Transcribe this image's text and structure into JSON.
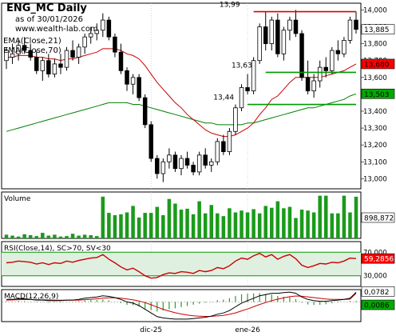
{
  "header": {
    "title": "ENG_MC Daily",
    "subtitle": "as of 30/01/2026",
    "website": "www.wealth-lab.com",
    "ema_fast_label": "EMA(Close,21)",
    "ema_slow_label": "EMA(Close,70)"
  },
  "colors": {
    "up_candle": "#ffffff",
    "down_candle": "#000000",
    "ema_fast": "#cc0000",
    "ema_slow": "#008000",
    "resistance": "#dd0000",
    "support": "#009900",
    "volume": "#1a9b1a",
    "rsi_line": "#cc0000",
    "rsi_band": "#e0f0e0",
    "macd_line": "#000000",
    "macd_signal": "#cc0000",
    "histogram": "#2a9d2a",
    "price_tag_last": "#ffffff",
    "price_tag_fast": "#ff0000",
    "price_tag_slow": "#00aa00"
  },
  "chart_data": [
    {
      "type": "candlestick",
      "panel": "price",
      "ylim": [
        12.94,
        14.04
      ],
      "yticks": [
        "14,000",
        "13,900",
        "13,800",
        "13,700",
        "13,600",
        "13,500",
        "13,400",
        "13,300",
        "13,200",
        "13,100",
        "13,000"
      ],
      "xticks": [
        "dic-25",
        "ene-26"
      ],
      "ohlc": [
        [
          13.7,
          13.78,
          13.65,
          13.76
        ],
        [
          13.72,
          13.8,
          13.68,
          13.74
        ],
        [
          13.74,
          13.82,
          13.7,
          13.79
        ],
        [
          13.79,
          13.84,
          13.74,
          13.76
        ],
        [
          13.76,
          13.8,
          13.7,
          13.72
        ],
        [
          13.72,
          13.76,
          13.62,
          13.64
        ],
        [
          13.64,
          13.72,
          13.58,
          13.7
        ],
        [
          13.7,
          13.74,
          13.6,
          13.62
        ],
        [
          13.62,
          13.71,
          13.6,
          13.68
        ],
        [
          13.68,
          13.74,
          13.62,
          13.66
        ],
        [
          13.66,
          13.78,
          13.64,
          13.76
        ],
        [
          13.76,
          13.82,
          13.7,
          13.72
        ],
        [
          13.72,
          13.8,
          13.68,
          13.78
        ],
        [
          13.78,
          13.86,
          13.74,
          13.84
        ],
        [
          13.84,
          13.9,
          13.8,
          13.86
        ],
        [
          13.86,
          13.92,
          13.82,
          13.88
        ],
        [
          13.88,
          13.98,
          13.84,
          13.94
        ],
        [
          13.94,
          13.96,
          13.82,
          13.84
        ],
        [
          13.84,
          13.86,
          13.72,
          13.75
        ],
        [
          13.75,
          13.8,
          13.62,
          13.64
        ],
        [
          13.64,
          13.66,
          13.52,
          13.56
        ],
        [
          13.56,
          13.62,
          13.5,
          13.6
        ],
        [
          13.6,
          13.62,
          13.46,
          13.48
        ],
        [
          13.48,
          13.5,
          13.3,
          13.32
        ],
        [
          13.32,
          13.34,
          13.1,
          13.12
        ],
        [
          13.12,
          13.14,
          13.0,
          13.03
        ],
        [
          13.03,
          13.12,
          12.98,
          13.1
        ],
        [
          13.1,
          13.18,
          13.06,
          13.14
        ],
        [
          13.14,
          13.16,
          13.04,
          13.06
        ],
        [
          13.06,
          13.14,
          13.02,
          13.12
        ],
        [
          13.12,
          13.16,
          13.06,
          13.08
        ],
        [
          13.08,
          13.1,
          13.02,
          13.04
        ],
        [
          13.04,
          13.16,
          13.02,
          13.14
        ],
        [
          13.14,
          13.18,
          13.06,
          13.08
        ],
        [
          13.08,
          13.12,
          13.04,
          13.1
        ],
        [
          13.1,
          13.24,
          13.08,
          13.22
        ],
        [
          13.22,
          13.26,
          13.14,
          13.16
        ],
        [
          13.16,
          13.3,
          13.14,
          13.28
        ],
        [
          13.28,
          13.44,
          13.26,
          13.42
        ],
        [
          13.42,
          13.56,
          13.4,
          13.54
        ],
        [
          13.54,
          13.62,
          13.5,
          13.52
        ],
        [
          13.52,
          13.72,
          13.5,
          13.7
        ],
        [
          13.7,
          13.92,
          13.68,
          13.9
        ],
        [
          13.9,
          13.99,
          13.76,
          13.8
        ],
        [
          13.8,
          13.96,
          13.76,
          13.94
        ],
        [
          13.94,
          13.98,
          13.72,
          13.74
        ],
        [
          13.74,
          13.9,
          13.7,
          13.88
        ],
        [
          13.88,
          13.96,
          13.82,
          13.94
        ],
        [
          13.94,
          14.0,
          13.84,
          13.86
        ],
        [
          13.86,
          13.88,
          13.58,
          13.6
        ],
        [
          13.6,
          13.7,
          13.5,
          13.52
        ],
        [
          13.52,
          13.62,
          13.48,
          13.58
        ],
        [
          13.58,
          13.7,
          13.54,
          13.66
        ],
        [
          13.66,
          13.72,
          13.6,
          13.64
        ],
        [
          13.64,
          13.78,
          13.62,
          13.76
        ],
        [
          13.76,
          13.82,
          13.7,
          13.74
        ],
        [
          13.74,
          13.84,
          13.72,
          13.82
        ],
        [
          13.82,
          13.96,
          13.8,
          13.94
        ],
        [
          13.94,
          13.99,
          13.86,
          13.885
        ]
      ],
      "ema_fast": [
        13.72,
        13.72,
        13.73,
        13.73,
        13.73,
        13.72,
        13.72,
        13.71,
        13.71,
        13.7,
        13.71,
        13.71,
        13.72,
        13.73,
        13.74,
        13.75,
        13.77,
        13.77,
        13.77,
        13.76,
        13.74,
        13.73,
        13.71,
        13.67,
        13.62,
        13.57,
        13.53,
        13.49,
        13.45,
        13.42,
        13.38,
        13.35,
        13.32,
        13.29,
        13.27,
        13.26,
        13.25,
        13.25,
        13.26,
        13.28,
        13.3,
        13.33,
        13.38,
        13.42,
        13.47,
        13.49,
        13.53,
        13.57,
        13.6,
        13.6,
        13.6,
        13.6,
        13.6,
        13.61,
        13.62,
        13.63,
        13.64,
        13.66,
        13.68
      ],
      "ema_slow": [
        13.28,
        13.29,
        13.3,
        13.31,
        13.32,
        13.33,
        13.34,
        13.35,
        13.36,
        13.37,
        13.38,
        13.39,
        13.4,
        13.41,
        13.42,
        13.43,
        13.44,
        13.45,
        13.45,
        13.45,
        13.45,
        13.44,
        13.44,
        13.43,
        13.42,
        13.41,
        13.4,
        13.39,
        13.38,
        13.37,
        13.36,
        13.35,
        13.34,
        13.33,
        13.33,
        13.32,
        13.32,
        13.32,
        13.32,
        13.32,
        13.33,
        13.33,
        13.34,
        13.35,
        13.36,
        13.37,
        13.38,
        13.39,
        13.4,
        13.41,
        13.42,
        13.42,
        13.43,
        13.44,
        13.45,
        13.46,
        13.47,
        13.49,
        13.503
      ],
      "levels": [
        {
          "label": "13,99",
          "value": 13.99,
          "role": "resistance",
          "from": 41,
          "to": 58
        },
        {
          "label": "13,63",
          "value": 13.63,
          "role": "support",
          "from": 43,
          "to": 58
        },
        {
          "label": "13,44",
          "value": 13.44,
          "role": "support",
          "from": 40,
          "to": 58
        }
      ],
      "price_tags": [
        {
          "label": "13,885",
          "value": 13.885,
          "role": "last"
        },
        {
          "label": "13,680",
          "value": 13.68,
          "role": "ema_fast"
        },
        {
          "label": "13,503",
          "value": 13.503,
          "role": "ema_slow"
        }
      ]
    },
    {
      "type": "bar",
      "panel": "volume",
      "title": "Volume",
      "ylim": [
        0,
        1000000
      ],
      "values": [
        80000,
        60000,
        40000,
        90000,
        70000,
        50000,
        120000,
        60000,
        80000,
        40000,
        50000,
        100000,
        60000,
        80000,
        70000,
        50000,
        900000,
        550000,
        500000,
        520000,
        560000,
        700000,
        450000,
        550000,
        550000,
        680000,
        500000,
        850000,
        750000,
        620000,
        640000,
        520000,
        800000,
        540000,
        720000,
        540000,
        480000,
        650000,
        560000,
        600000,
        560000,
        630000,
        540000,
        700000,
        660000,
        800000,
        650000,
        680000,
        440000,
        620000,
        600000,
        560000,
        920000,
        920000,
        540000,
        540000,
        920000,
        560000,
        898872
      ],
      "price_tag": "898,872"
    },
    {
      "type": "line",
      "panel": "rsi",
      "title": "RSI(Close,14), SC>70, SV<30",
      "ylim": [
        0,
        100
      ],
      "yticks": [
        "70,000",
        "30,000"
      ],
      "band": [
        30,
        70
      ],
      "values": [
        52,
        53,
        55,
        54,
        53,
        50,
        52,
        49,
        52,
        51,
        55,
        53,
        56,
        58,
        60,
        61,
        66,
        58,
        52,
        45,
        40,
        43,
        37,
        30,
        26,
        27,
        32,
        35,
        34,
        37,
        36,
        34,
        39,
        37,
        39,
        44,
        42,
        47,
        55,
        60,
        58,
        64,
        68,
        62,
        66,
        58,
        63,
        66,
        59,
        48,
        44,
        47,
        51,
        50,
        53,
        52,
        55,
        60,
        59.2856
      ],
      "price_tag": "59,2856"
    },
    {
      "type": "line",
      "panel": "macd",
      "title": "MACD(12,26,9)",
      "ylim": [
        -0.16,
        0.1
      ],
      "macd": [
        0.02,
        0.02,
        0.025,
        0.025,
        0.02,
        0.015,
        0.015,
        0.01,
        0.01,
        0.01,
        0.015,
        0.015,
        0.02,
        0.03,
        0.035,
        0.04,
        0.05,
        0.045,
        0.035,
        0.02,
        0.0,
        -0.01,
        -0.03,
        -0.06,
        -0.09,
        -0.12,
        -0.13,
        -0.135,
        -0.14,
        -0.14,
        -0.14,
        -0.135,
        -0.13,
        -0.125,
        -0.115,
        -0.1,
        -0.09,
        -0.07,
        -0.04,
        -0.01,
        0.01,
        0.03,
        0.05,
        0.06,
        0.07,
        0.07,
        0.075,
        0.08,
        0.07,
        0.04,
        0.02,
        0.01,
        0.005,
        0.005,
        0.01,
        0.015,
        0.02,
        0.03,
        0.0782
      ],
      "signal": [
        0.015,
        0.016,
        0.018,
        0.019,
        0.019,
        0.018,
        0.017,
        0.016,
        0.015,
        0.014,
        0.014,
        0.014,
        0.015,
        0.018,
        0.021,
        0.025,
        0.03,
        0.033,
        0.033,
        0.03,
        0.024,
        0.017,
        0.008,
        -0.006,
        -0.023,
        -0.042,
        -0.06,
        -0.075,
        -0.088,
        -0.098,
        -0.107,
        -0.113,
        -0.116,
        -0.118,
        -0.117,
        -0.114,
        -0.109,
        -0.101,
        -0.089,
        -0.073,
        -0.057,
        -0.039,
        -0.021,
        -0.005,
        0.01,
        0.022,
        0.033,
        0.042,
        0.048,
        0.046,
        0.041,
        0.035,
        0.029,
        0.024,
        0.021,
        0.02,
        0.02,
        0.022,
        0.0696
      ],
      "histogram": [
        0.005,
        0.004,
        0.007,
        0.006,
        0.001,
        -0.003,
        -0.002,
        -0.006,
        -0.005,
        -0.004,
        0.001,
        0.001,
        0.005,
        0.012,
        0.014,
        0.015,
        0.02,
        0.012,
        0.002,
        -0.01,
        -0.024,
        -0.027,
        -0.038,
        -0.054,
        -0.067,
        -0.078,
        -0.07,
        -0.06,
        -0.052,
        -0.042,
        -0.033,
        -0.022,
        -0.014,
        -0.007,
        0.002,
        0.014,
        0.019,
        0.031,
        0.049,
        0.063,
        0.067,
        0.069,
        0.071,
        0.065,
        0.06,
        0.048,
        0.042,
        0.038,
        0.022,
        -0.006,
        -0.021,
        -0.025,
        -0.024,
        -0.019,
        -0.011,
        -0.005,
        0.0,
        0.008,
        0.0086
      ],
      "price_tags": [
        "0,0782",
        "0,0086"
      ]
    }
  ]
}
